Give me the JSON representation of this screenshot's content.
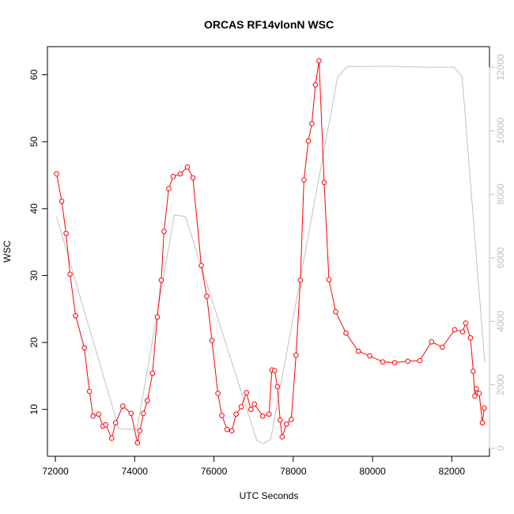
{
  "chart_data": {
    "type": "line",
    "title": "ORCAS RF14vlonN WSC",
    "xlabel": "UTC Seconds",
    "ylabel": "WSC",
    "xlim": [
      71800,
      82950
    ],
    "ylim": [
      3.0,
      64.2
    ],
    "y2lim": [
      -250,
      12650
    ],
    "x_ticks": [
      72000,
      74000,
      76000,
      78000,
      80000,
      82000
    ],
    "y_ticks": [
      10,
      20,
      30,
      40,
      50,
      60
    ],
    "y2_ticks": [
      0,
      2000,
      4000,
      6000,
      8000,
      10000,
      12000
    ],
    "grid": false,
    "colors": {
      "primary": "#ff0000",
      "secondary": "#c0c0c0"
    },
    "series": [
      {
        "axis": "left",
        "marker": "circle",
        "color": "#ff0000",
        "x": [
          72030,
          72160,
          72270,
          72370,
          72510,
          72730,
          72860,
          72950,
          73090,
          73200,
          73270,
          73420,
          73520,
          73700,
          73910,
          74070,
          74130,
          74220,
          74320,
          74450,
          74570,
          74670,
          74740,
          74860,
          74970,
          75150,
          75330,
          75470,
          75680,
          75820,
          75950,
          76100,
          76200,
          76330,
          76450,
          76560,
          76690,
          76820,
          76930,
          77020,
          77230,
          77390,
          77460,
          77530,
          77600,
          77670,
          77720,
          77830,
          77950,
          78070,
          78180,
          78270,
          78380,
          78470,
          78560,
          78650,
          78780,
          78900,
          79070,
          79330,
          79640,
          79930,
          80260,
          80560,
          80890,
          81190,
          81490,
          81760,
          82070,
          82270,
          82350,
          82470,
          82540,
          82580,
          82620,
          82690,
          82770,
          82820
        ],
        "y": [
          45.2,
          41.1,
          36.3,
          30.2,
          24.0,
          19.2,
          12.7,
          9.0,
          9.3,
          7.5,
          7.7,
          5.7,
          8.0,
          10.5,
          9.4,
          5.0,
          6.8,
          9.4,
          11.3,
          15.4,
          23.8,
          29.3,
          36.6,
          43.0,
          44.8,
          45.2,
          46.2,
          44.6,
          31.5,
          26.9,
          20.3,
          12.4,
          9.1,
          7.0,
          6.8,
          9.3,
          10.4,
          12.5,
          10.0,
          10.8,
          9.0,
          9.3,
          15.9,
          15.8,
          13.4,
          8.4,
          5.9,
          7.8,
          8.5,
          18.1,
          29.3,
          44.3,
          50.1,
          52.7,
          58.5,
          62.1,
          43.9,
          29.4,
          24.6,
          21.4,
          18.7,
          18.0,
          17.1,
          17.0,
          17.2,
          17.3,
          20.1,
          19.3,
          21.9,
          21.6,
          22.9,
          20.7,
          15.7,
          12.0,
          13.1,
          12.4,
          8.0,
          10.2
        ]
      },
      {
        "axis": "right",
        "marker": "none",
        "color": "#c0c0c0",
        "x": [
          72030,
          73600,
          73860,
          74060,
          75000,
          75280,
          77080,
          77250,
          77430,
          79120,
          79360,
          80500,
          81500,
          82060,
          82260,
          82830
        ],
        "y": [
          7300,
          620,
          600,
          600,
          7350,
          7300,
          250,
          150,
          280,
          11700,
          12020,
          12030,
          12000,
          12000,
          11700,
          2700
        ]
      }
    ]
  }
}
